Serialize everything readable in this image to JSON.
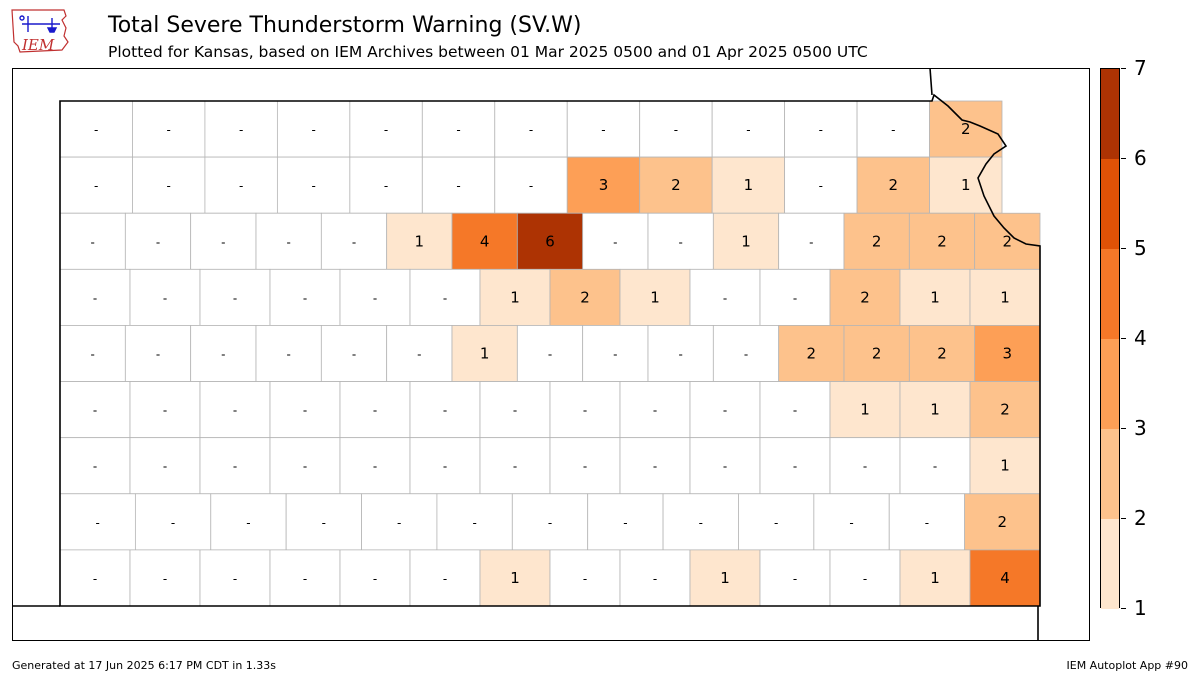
{
  "header": {
    "title": "Total Severe Thunderstorm Warning (SV.W)",
    "subtitle": "Plotted for Kansas, based on IEM Archives  between 01 Mar 2025 0500 and 01 Apr 2025 0500 UTC"
  },
  "logo": {
    "text": "IEM"
  },
  "footer": {
    "generated": "Generated at 17 Jun 2025 6:17 PM CDT in 1.33s",
    "app": "IEM Autoplot App #90"
  },
  "colors": {
    "c1": "#fee6ce",
    "c2": "#fdc28c",
    "c3": "#fd9f56",
    "c4": "#f57828",
    "c5": "#e05206",
    "c6": "#ad3303",
    "none": "#ffffff",
    "county_border": "#b5b5b5"
  },
  "colorbar": {
    "ticks": [
      "1",
      "2",
      "3",
      "4",
      "5",
      "6",
      "7"
    ],
    "colors": [
      "#fee6ce",
      "#fdc28c",
      "#fd9f56",
      "#f57828",
      "#e05206",
      "#ad3303"
    ]
  },
  "map": {
    "state": "Kansas",
    "counties": [
      {
        "row": 0,
        "col": 0,
        "value": "-"
      },
      {
        "row": 0,
        "col": 1,
        "value": "-"
      },
      {
        "row": 0,
        "col": 2,
        "value": "-"
      },
      {
        "row": 0,
        "col": 3,
        "value": "-"
      },
      {
        "row": 0,
        "col": 4,
        "value": "-"
      },
      {
        "row": 0,
        "col": 5,
        "value": "-"
      },
      {
        "row": 0,
        "col": 6,
        "value": "-"
      },
      {
        "row": 0,
        "col": 7,
        "value": "-"
      },
      {
        "row": 0,
        "col": 8,
        "value": "-"
      },
      {
        "row": 0,
        "col": 9,
        "value": "-"
      },
      {
        "row": 0,
        "col": 10,
        "value": "-"
      },
      {
        "row": 0,
        "col": 11,
        "value": "-"
      },
      {
        "row": 0,
        "col": 12,
        "value": "2"
      },
      {
        "row": 1,
        "col": 0,
        "value": "-"
      },
      {
        "row": 1,
        "col": 1,
        "value": "-"
      },
      {
        "row": 1,
        "col": 2,
        "value": "-"
      },
      {
        "row": 1,
        "col": 3,
        "value": "-"
      },
      {
        "row": 1,
        "col": 4,
        "value": "-"
      },
      {
        "row": 1,
        "col": 5,
        "value": "-"
      },
      {
        "row": 1,
        "col": 6,
        "value": "-"
      },
      {
        "row": 1,
        "col": 7,
        "value": "3"
      },
      {
        "row": 1,
        "col": 8,
        "value": "2"
      },
      {
        "row": 1,
        "col": 9,
        "value": "1"
      },
      {
        "row": 1,
        "col": 10,
        "value": "-"
      },
      {
        "row": 1,
        "col": 11,
        "value": "2"
      },
      {
        "row": 1,
        "col": 12,
        "value": "1"
      },
      {
        "row": 2,
        "col": 0,
        "value": "-"
      },
      {
        "row": 2,
        "col": 1,
        "value": "-"
      },
      {
        "row": 2,
        "col": 2,
        "value": "-"
      },
      {
        "row": 2,
        "col": 3,
        "value": "-"
      },
      {
        "row": 2,
        "col": 4,
        "value": "-"
      },
      {
        "row": 2,
        "col": 5,
        "value": "1"
      },
      {
        "row": 2,
        "col": 6,
        "value": "4"
      },
      {
        "row": 2,
        "col": 7,
        "value": "6"
      },
      {
        "row": 2,
        "col": 8,
        "value": "-"
      },
      {
        "row": 2,
        "col": 9,
        "value": "-"
      },
      {
        "row": 2,
        "col": 10,
        "value": "1"
      },
      {
        "row": 2,
        "col": 11,
        "value": "-"
      },
      {
        "row": 2,
        "col": 12,
        "value": "2"
      },
      {
        "row": 2,
        "col": 13,
        "value": "2"
      },
      {
        "row": 2,
        "col": 14,
        "value": "2"
      },
      {
        "row": 3,
        "col": 0,
        "value": "-"
      },
      {
        "row": 3,
        "col": 1,
        "value": "-"
      },
      {
        "row": 3,
        "col": 2,
        "value": "-"
      },
      {
        "row": 3,
        "col": 3,
        "value": "-"
      },
      {
        "row": 3,
        "col": 4,
        "value": "-"
      },
      {
        "row": 3,
        "col": 5,
        "value": "-"
      },
      {
        "row": 3,
        "col": 6,
        "value": "1"
      },
      {
        "row": 3,
        "col": 7,
        "value": "2"
      },
      {
        "row": 3,
        "col": 8,
        "value": "1"
      },
      {
        "row": 3,
        "col": 9,
        "value": "-"
      },
      {
        "row": 3,
        "col": 10,
        "value": "-"
      },
      {
        "row": 3,
        "col": 11,
        "value": "2"
      },
      {
        "row": 3,
        "col": 12,
        "value": "1"
      },
      {
        "row": 3,
        "col": 13,
        "value": "1"
      },
      {
        "row": 4,
        "col": 0,
        "value": "-"
      },
      {
        "row": 4,
        "col": 1,
        "value": "-"
      },
      {
        "row": 4,
        "col": 2,
        "value": "-"
      },
      {
        "row": 4,
        "col": 3,
        "value": "-"
      },
      {
        "row": 4,
        "col": 4,
        "value": "-"
      },
      {
        "row": 4,
        "col": 5,
        "value": "-"
      },
      {
        "row": 4,
        "col": 6,
        "value": "1"
      },
      {
        "row": 4,
        "col": 7,
        "value": "-"
      },
      {
        "row": 4,
        "col": 8,
        "value": "-"
      },
      {
        "row": 4,
        "col": 9,
        "value": "-"
      },
      {
        "row": 4,
        "col": 10,
        "value": "-"
      },
      {
        "row": 4,
        "col": 11,
        "value": "2"
      },
      {
        "row": 4,
        "col": 12,
        "value": "2"
      },
      {
        "row": 4,
        "col": 13,
        "value": "2"
      },
      {
        "row": 4,
        "col": 14,
        "value": "3"
      },
      {
        "row": 5,
        "col": 0,
        "value": "-"
      },
      {
        "row": 5,
        "col": 1,
        "value": "-"
      },
      {
        "row": 5,
        "col": 2,
        "value": "-"
      },
      {
        "row": 5,
        "col": 3,
        "value": "-"
      },
      {
        "row": 5,
        "col": 4,
        "value": "-"
      },
      {
        "row": 5,
        "col": 5,
        "value": "-"
      },
      {
        "row": 5,
        "col": 6,
        "value": "-"
      },
      {
        "row": 5,
        "col": 7,
        "value": "-"
      },
      {
        "row": 5,
        "col": 8,
        "value": "-"
      },
      {
        "row": 5,
        "col": 9,
        "value": "-"
      },
      {
        "row": 5,
        "col": 10,
        "value": "-"
      },
      {
        "row": 5,
        "col": 11,
        "value": "1"
      },
      {
        "row": 5,
        "col": 12,
        "value": "1"
      },
      {
        "row": 5,
        "col": 13,
        "value": "2"
      },
      {
        "row": 6,
        "col": 0,
        "value": "-"
      },
      {
        "row": 6,
        "col": 1,
        "value": "-"
      },
      {
        "row": 6,
        "col": 2,
        "value": "-"
      },
      {
        "row": 6,
        "col": 3,
        "value": "-"
      },
      {
        "row": 6,
        "col": 4,
        "value": "-"
      },
      {
        "row": 6,
        "col": 5,
        "value": "-"
      },
      {
        "row": 6,
        "col": 6,
        "value": "-"
      },
      {
        "row": 6,
        "col": 7,
        "value": "-"
      },
      {
        "row": 6,
        "col": 8,
        "value": "-"
      },
      {
        "row": 6,
        "col": 9,
        "value": "-"
      },
      {
        "row": 6,
        "col": 10,
        "value": "-"
      },
      {
        "row": 6,
        "col": 11,
        "value": "-"
      },
      {
        "row": 6,
        "col": 12,
        "value": "-"
      },
      {
        "row": 6,
        "col": 13,
        "value": "1"
      },
      {
        "row": 7,
        "col": 0,
        "value": "-"
      },
      {
        "row": 7,
        "col": 1,
        "value": "-"
      },
      {
        "row": 7,
        "col": 2,
        "value": "-"
      },
      {
        "row": 7,
        "col": 3,
        "value": "-"
      },
      {
        "row": 7,
        "col": 4,
        "value": "-"
      },
      {
        "row": 7,
        "col": 5,
        "value": "-"
      },
      {
        "row": 7,
        "col": 6,
        "value": "-"
      },
      {
        "row": 7,
        "col": 7,
        "value": "-"
      },
      {
        "row": 7,
        "col": 8,
        "value": "-"
      },
      {
        "row": 7,
        "col": 9,
        "value": "-"
      },
      {
        "row": 7,
        "col": 10,
        "value": "-"
      },
      {
        "row": 7,
        "col": 11,
        "value": "-"
      },
      {
        "row": 7,
        "col": 12,
        "value": "2"
      },
      {
        "row": 8,
        "col": 0,
        "value": "-"
      },
      {
        "row": 8,
        "col": 1,
        "value": "-"
      },
      {
        "row": 8,
        "col": 2,
        "value": "-"
      },
      {
        "row": 8,
        "col": 3,
        "value": "-"
      },
      {
        "row": 8,
        "col": 4,
        "value": "-"
      },
      {
        "row": 8,
        "col": 5,
        "value": "-"
      },
      {
        "row": 8,
        "col": 6,
        "value": "1"
      },
      {
        "row": 8,
        "col": 7,
        "value": "-"
      },
      {
        "row": 8,
        "col": 8,
        "value": "-"
      },
      {
        "row": 8,
        "col": 9,
        "value": "1"
      },
      {
        "row": 8,
        "col": 10,
        "value": "-"
      },
      {
        "row": 8,
        "col": 11,
        "value": "-"
      },
      {
        "row": 8,
        "col": 12,
        "value": "1"
      },
      {
        "row": 8,
        "col": 13,
        "value": "4"
      }
    ]
  }
}
